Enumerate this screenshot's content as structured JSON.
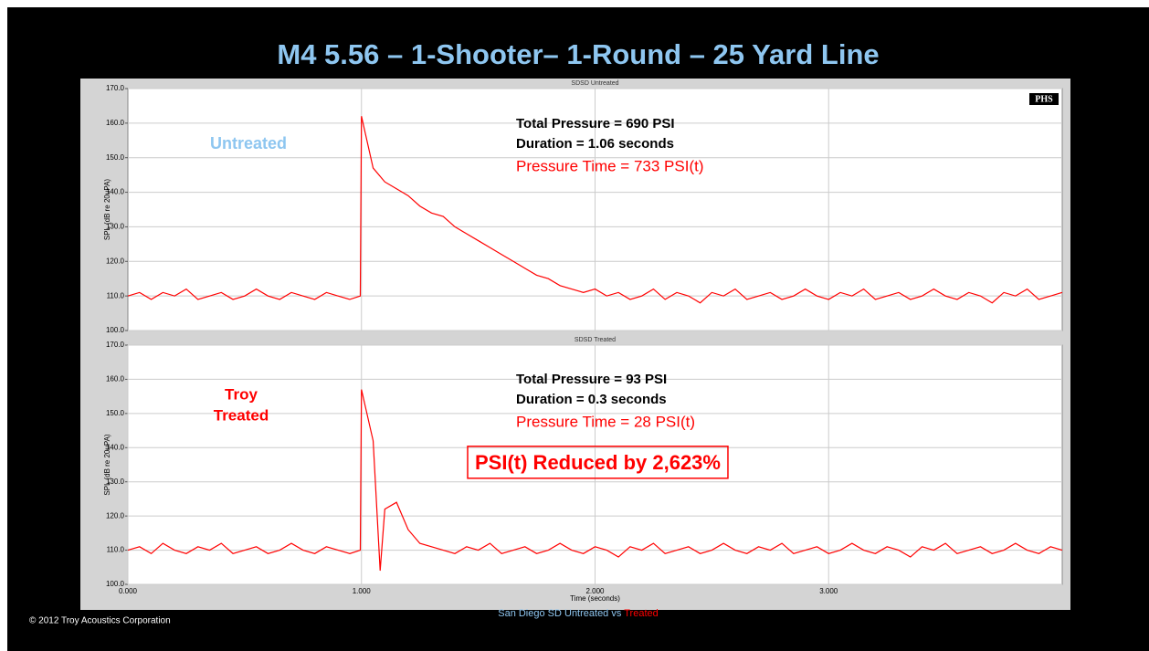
{
  "title": "M4 5.56 – 1-Shooter– 1-Round – 25 Yard Line",
  "copyright": "© 2012 Troy Acoustics Corporation",
  "footer": [
    "San Diego SD Untreated vs",
    "Treated"
  ],
  "chart_data": [
    {
      "type": "line",
      "title": "SDSD Untreated",
      "ylabel": "SPL (dB re 20uPA)",
      "badge": "PHS",
      "xlim": [
        0,
        4
      ],
      "ylim": [
        100,
        170
      ],
      "xticks": [
        1,
        2,
        3
      ],
      "xtick_labels": false,
      "yticks": [
        {
          "value": 100,
          "label": "100.0"
        },
        {
          "value": 110,
          "label": "110.0"
        },
        {
          "value": 120,
          "label": "120.0"
        },
        {
          "value": 130,
          "label": "130.0"
        },
        {
          "value": 140,
          "label": "140.0"
        },
        {
          "value": 150,
          "label": "150.0"
        },
        {
          "value": 160,
          "label": "160.0"
        },
        {
          "value": 170,
          "label": "170.0"
        }
      ],
      "grid": true,
      "annotations": [
        {
          "text": "Untreated",
          "color": "#8ec6f0"
        },
        {
          "text": "Total Pressure = 690 PSI",
          "color": "#000000"
        },
        {
          "text": "Duration = 1.06 seconds",
          "color": "#000000"
        },
        {
          "text": "Pressure Time = 733 PSI(t)",
          "color": "#ff0000"
        }
      ],
      "series": [
        {
          "color": "#ff0000",
          "x": [
            0,
            0.05,
            0.1,
            0.15,
            0.2,
            0.25,
            0.3,
            0.35,
            0.4,
            0.45,
            0.5,
            0.55,
            0.6,
            0.65,
            0.7,
            0.75,
            0.8,
            0.85,
            0.9,
            0.95,
            0.995,
            1,
            1.05,
            1.1,
            1.15,
            1.2,
            1.25,
            1.3,
            1.35,
            1.4,
            1.45,
            1.5,
            1.55,
            1.6,
            1.65,
            1.7,
            1.75,
            1.8,
            1.85,
            1.9,
            1.95,
            2,
            2.05,
            2.1,
            2.15,
            2.2,
            2.25,
            2.3,
            2.35,
            2.4,
            2.45,
            2.5,
            2.55,
            2.6,
            2.65,
            2.7,
            2.75,
            2.8,
            2.85,
            2.9,
            2.95,
            3,
            3.05,
            3.1,
            3.15,
            3.2,
            3.25,
            3.3,
            3.35,
            3.4,
            3.45,
            3.5,
            3.55,
            3.6,
            3.65,
            3.7,
            3.75,
            3.8,
            3.85,
            3.9,
            3.95,
            4
          ],
          "values": [
            110,
            111,
            109,
            111,
            110,
            112,
            109,
            110,
            111,
            109,
            110,
            112,
            110,
            109,
            111,
            110,
            109,
            111,
            110,
            109,
            110,
            162,
            147,
            143,
            141,
            139,
            136,
            134,
            133,
            130,
            128,
            126,
            124,
            122,
            120,
            118,
            116,
            115,
            113,
            112,
            111,
            112,
            110,
            111,
            109,
            110,
            112,
            109,
            111,
            110,
            108,
            111,
            110,
            112,
            109,
            110,
            111,
            109,
            110,
            112,
            110,
            109,
            111,
            110,
            112,
            109,
            110,
            111,
            109,
            110,
            112,
            110,
            109,
            111,
            110,
            108,
            111,
            110,
            112,
            109,
            110,
            111
          ]
        }
      ]
    },
    {
      "type": "line",
      "title": "SDSD Treated",
      "ylabel": "SPL (dB re 20uPA)",
      "xlabel": "Time (seconds)",
      "xlim": [
        0,
        4
      ],
      "ylim": [
        100,
        170
      ],
      "xticks": [
        {
          "value": 0,
          "label": "0.000"
        },
        {
          "value": 1,
          "label": "1.000"
        },
        {
          "value": 2,
          "label": "2.000"
        },
        {
          "value": 3,
          "label": "3.000"
        }
      ],
      "yticks": [
        {
          "value": 100,
          "label": "100.0"
        },
        {
          "value": 110,
          "label": "110.0"
        },
        {
          "value": 120,
          "label": "120.0"
        },
        {
          "value": 130,
          "label": "130.0"
        },
        {
          "value": 140,
          "label": "140.0"
        },
        {
          "value": 150,
          "label": "150.0"
        },
        {
          "value": 160,
          "label": "160.0"
        },
        {
          "value": 170,
          "label": "170.0"
        }
      ],
      "grid": true,
      "annotations": [
        {
          "text": "Troy",
          "color": "#ff0000"
        },
        {
          "text": "Treated",
          "color": "#ff0000"
        },
        {
          "text": "Total Pressure = 93 PSI",
          "color": "#000000"
        },
        {
          "text": "Duration = 0.3 seconds",
          "color": "#000000"
        },
        {
          "text": "Pressure Time = 28 PSI(t)",
          "color": "#ff0000"
        },
        {
          "text": "PSI(t) Reduced by 2,623%",
          "color": "#ff0000"
        }
      ],
      "series": [
        {
          "color": "#ff0000",
          "x": [
            0,
            0.05,
            0.1,
            0.15,
            0.2,
            0.25,
            0.3,
            0.35,
            0.4,
            0.45,
            0.5,
            0.55,
            0.6,
            0.65,
            0.7,
            0.75,
            0.8,
            0.85,
            0.9,
            0.95,
            0.995,
            1,
            1.05,
            1.08,
            1.1,
            1.15,
            1.2,
            1.25,
            1.3,
            1.35,
            1.4,
            1.45,
            1.5,
            1.55,
            1.6,
            1.65,
            1.7,
            1.75,
            1.8,
            1.85,
            1.9,
            1.95,
            2,
            2.05,
            2.1,
            2.15,
            2.2,
            2.25,
            2.3,
            2.35,
            2.4,
            2.45,
            2.5,
            2.55,
            2.6,
            2.65,
            2.7,
            2.75,
            2.8,
            2.85,
            2.9,
            2.95,
            3,
            3.05,
            3.1,
            3.15,
            3.2,
            3.25,
            3.3,
            3.35,
            3.4,
            3.45,
            3.5,
            3.55,
            3.6,
            3.65,
            3.7,
            3.75,
            3.8,
            3.85,
            3.9,
            3.95,
            4
          ],
          "values": [
            110,
            111,
            109,
            112,
            110,
            109,
            111,
            110,
            112,
            109,
            110,
            111,
            109,
            110,
            112,
            110,
            109,
            111,
            110,
            109,
            110,
            157,
            142,
            104,
            122,
            124,
            116,
            112,
            111,
            110,
            109,
            111,
            110,
            112,
            109,
            110,
            111,
            109,
            110,
            112,
            110,
            109,
            111,
            110,
            108,
            111,
            110,
            112,
            109,
            110,
            111,
            109,
            110,
            112,
            110,
            109,
            111,
            110,
            112,
            109,
            110,
            111,
            109,
            110,
            112,
            110,
            109,
            111,
            110,
            108,
            111,
            110,
            112,
            109,
            110,
            111,
            109,
            110,
            112,
            110,
            109,
            111,
            110
          ]
        }
      ]
    }
  ]
}
